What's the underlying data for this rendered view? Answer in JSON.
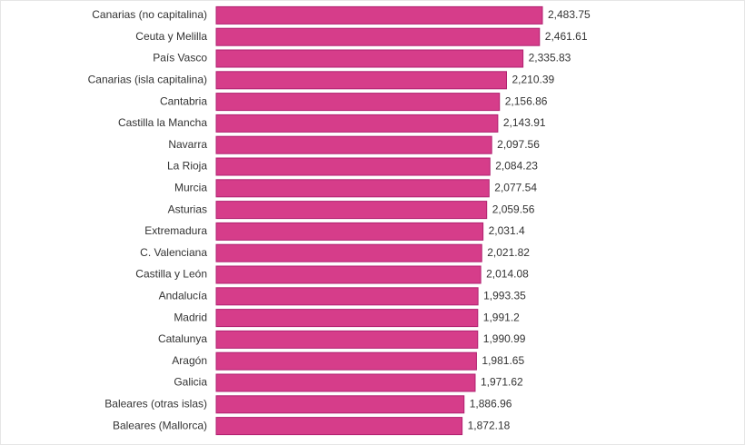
{
  "chart_data": {
    "type": "hbar",
    "color": "#d63d8a",
    "categories": [
      "Canarias (no capitalina)",
      "Ceuta y Melilla",
      "País Vasco",
      "Canarias (isla capitalina)",
      "Cantabria",
      "Castilla la Mancha",
      "Navarra",
      "La Rioja",
      "Murcia",
      "Asturias",
      "Extremadura",
      "C. Valenciana",
      "Castilla y León",
      "Andalucía",
      "Madrid",
      "Catalunya",
      "Aragón",
      "Galicia",
      "Baleares (otras islas)",
      "Baleares (Mallorca)"
    ],
    "values": [
      2483.75,
      2461.61,
      2335.83,
      2210.39,
      2156.86,
      2143.91,
      2097.56,
      2084.23,
      2077.54,
      2059.56,
      2031.4,
      2021.82,
      2014.08,
      1993.35,
      1991.2,
      1990.99,
      1981.65,
      1971.62,
      1886.96,
      1872.18
    ],
    "value_labels": [
      "2,483.75",
      "2,461.61",
      "2,335.83",
      "2,210.39",
      "2,156.86",
      "2,143.91",
      "2,097.56",
      "2,084.23",
      "2,077.54",
      "2,059.56",
      "2,031.4",
      "2,021.82",
      "2,014.08",
      "1,993.35",
      "1,991.2",
      "1,990.99",
      "1,981.65",
      "1,971.62",
      "1,886.96",
      "1,872.18"
    ]
  }
}
